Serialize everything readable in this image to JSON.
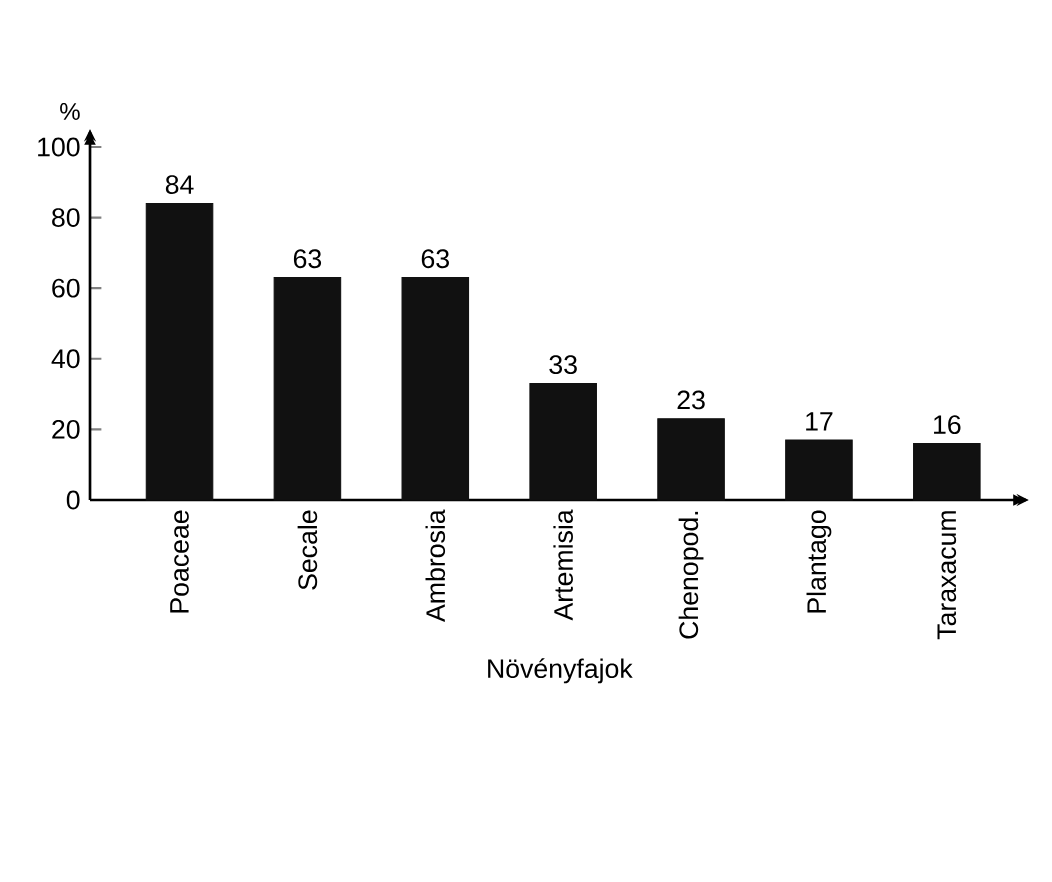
{
  "chart_data": {
    "type": "bar",
    "xlabel": "Növényfajok",
    "ylabel": "%",
    "categories": [
      "Poaceae",
      "Secale",
      "Ambrosia",
      "Artemisia",
      "Chenopod.",
      "Plantago",
      "Taraxacum"
    ],
    "values": [
      84,
      63,
      63,
      33,
      23,
      17,
      16
    ],
    "color": "#111111",
    "ylim": [
      0,
      105
    ],
    "yticks": [
      0,
      20,
      40,
      60,
      80,
      100
    ],
    "data_labels": true,
    "grid": false
  }
}
